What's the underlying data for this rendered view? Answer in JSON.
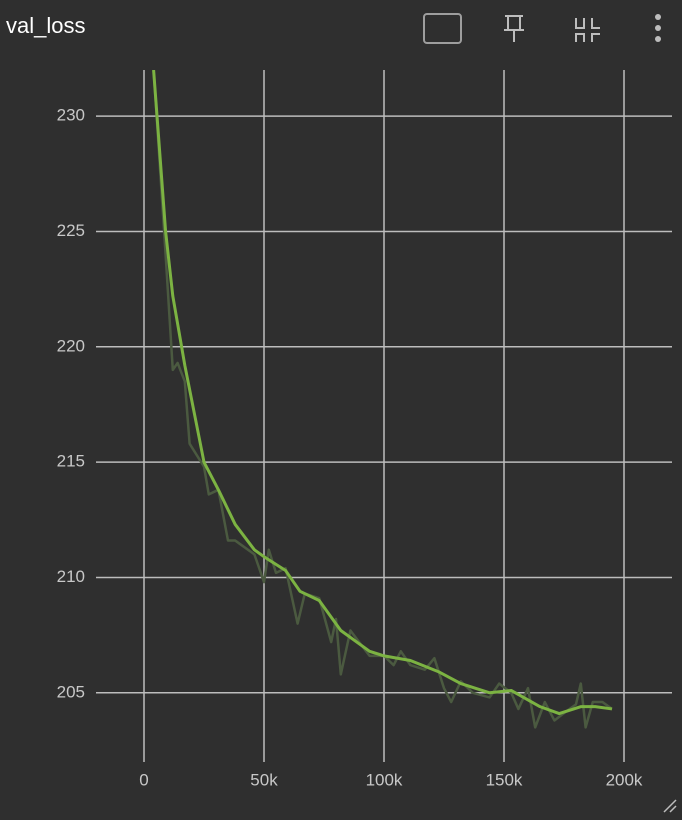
{
  "chart_data": {
    "type": "line",
    "title": "val_loss",
    "xlim": [
      -20000,
      220000
    ],
    "ylim": [
      202,
      232
    ],
    "xticks": [
      0,
      {
        "value": 50000,
        "label": "50k"
      },
      {
        "value": 100000,
        "label": "100k"
      },
      {
        "value": 150000,
        "label": "150k"
      },
      {
        "value": 200000,
        "label": "200k"
      }
    ],
    "yticks": [
      205,
      210,
      215,
      220,
      225,
      230
    ],
    "grid": true,
    "series": [
      {
        "color": "#4b5a40",
        "x": [
          4000,
          9000,
          12000,
          14000,
          17000,
          19000,
          25000,
          27000,
          31000,
          35000,
          38000,
          46000,
          50000,
          52000,
          55000,
          59000,
          64000,
          67000,
          73000,
          78000,
          80000,
          82000,
          86000,
          94000,
          100000,
          104000,
          107000,
          111000,
          117000,
          121000,
          125000,
          128000,
          132000,
          137000,
          144000,
          148000,
          153000,
          156000,
          160000,
          163000,
          167000,
          171000,
          176000,
          180000,
          182000,
          184000,
          187000,
          191000,
          195000
        ],
        "values": [
          232,
          224,
          219,
          219.3,
          218.5,
          215.8,
          214.8,
          213.6,
          213.8,
          211.6,
          211.6,
          211,
          209.8,
          211.2,
          210.2,
          210.4,
          208,
          209.3,
          209.1,
          207.2,
          208.2,
          205.8,
          207.7,
          206.6,
          206.6,
          206.2,
          206.8,
          206.2,
          206,
          206.5,
          205.2,
          204.6,
          205.5,
          205,
          204.8,
          205.4,
          205,
          204.3,
          205.2,
          203.5,
          204.6,
          203.8,
          204.2,
          204.5,
          205.4,
          203.5,
          204.6,
          204.6,
          204.3
        ]
      },
      {
        "color": "#7cb342",
        "x": [
          4000,
          9000,
          12000,
          17000,
          25000,
          31000,
          38000,
          46000,
          50000,
          59000,
          65000,
          73000,
          82000,
          94000,
          100000,
          111000,
          123000,
          132000,
          144000,
          153000,
          165000,
          173000,
          182000,
          188000,
          195000
        ],
        "values": [
          232,
          225,
          222.2,
          219.2,
          215,
          213.8,
          212.3,
          211.2,
          210.9,
          210.3,
          209.4,
          209,
          207.7,
          206.8,
          206.6,
          206.4,
          205.9,
          205.4,
          205,
          205.1,
          204.4,
          204.1,
          204.4,
          204.4,
          204.3
        ]
      }
    ]
  }
}
